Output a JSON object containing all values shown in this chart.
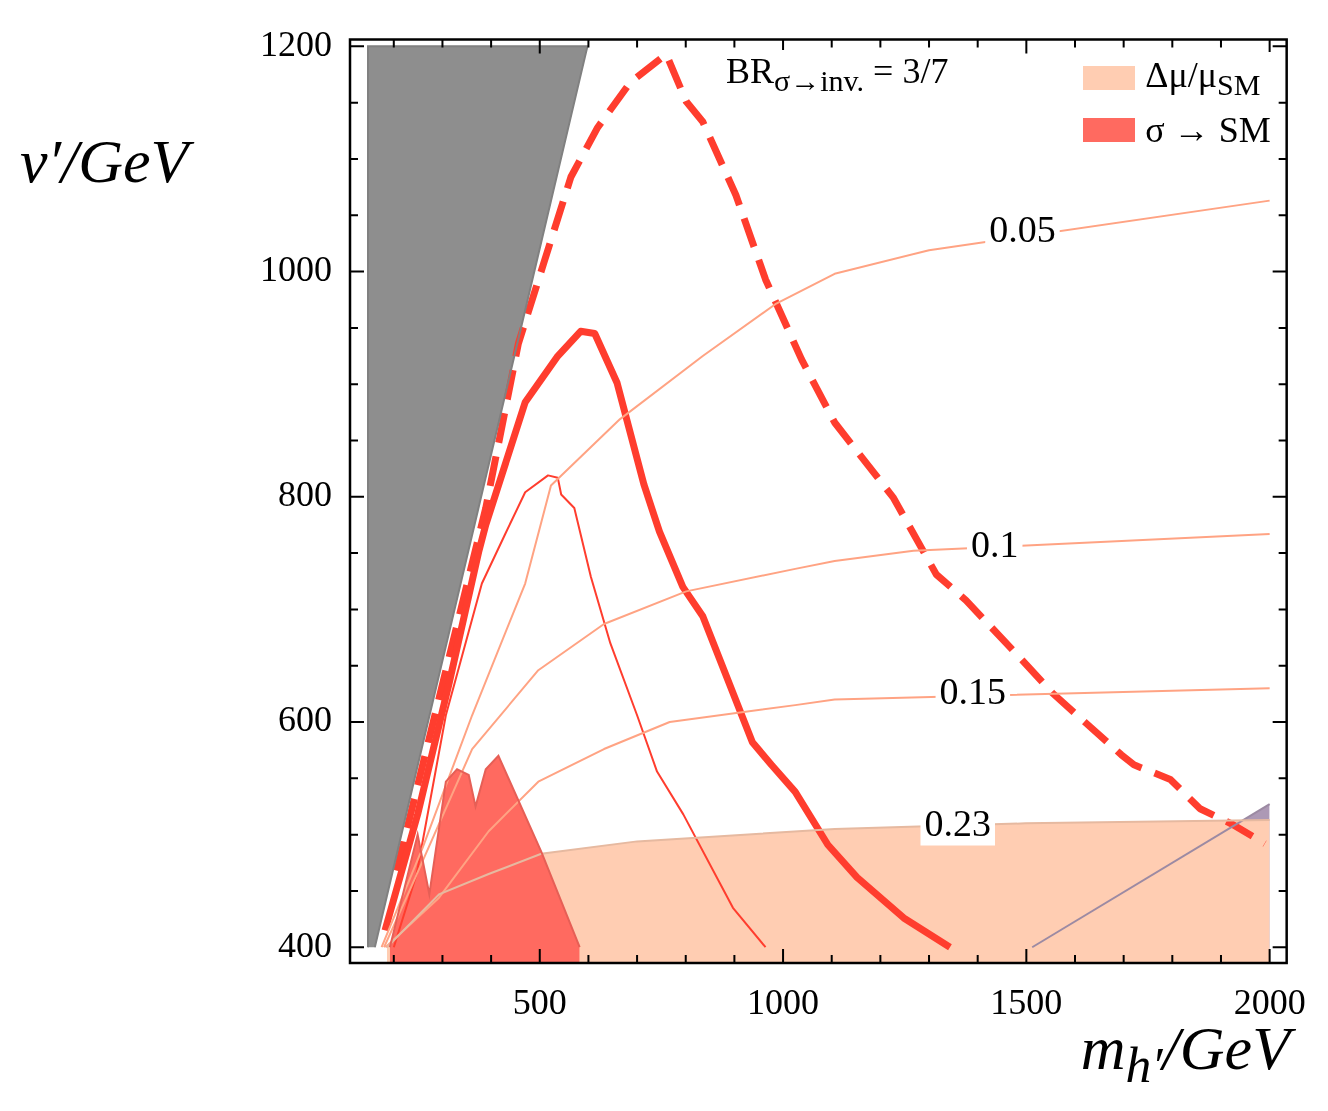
{
  "chart_data": {
    "type": "line",
    "xlabel": "m$_{h′}$/GeV",
    "ylabel": "v′/GeV",
    "annotations": [
      "BR$_{σ→inv.}$ = 3/7",
      {
        "text": "0.05",
        "x": 1492,
        "y": 1035
      },
      {
        "text": "0.1",
        "x": 1435,
        "y": 755
      },
      {
        "text": "0.15",
        "x": 1390,
        "y": 625
      },
      {
        "text": "0.23",
        "x": 1359,
        "y": 508
      }
    ],
    "xlim": [
      110,
      2035
    ],
    "ylim": [
      386,
      1206
    ],
    "xticks": [
      {
        "value": 200,
        "label": null
      },
      {
        "value": 300,
        "label": null
      },
      {
        "value": 400,
        "label": null
      },
      500,
      {
        "value": 600,
        "label": null
      },
      {
        "value": 700,
        "label": null
      },
      {
        "value": 800,
        "label": null
      },
      {
        "value": 900,
        "label": null
      },
      1000,
      {
        "value": 1100,
        "label": null
      },
      {
        "value": 1200,
        "label": null
      },
      {
        "value": 1300,
        "label": null
      },
      {
        "value": 1400,
        "label": null
      },
      1500,
      {
        "value": 1600,
        "label": null
      },
      {
        "value": 1700,
        "label": null
      },
      {
        "value": 1800,
        "label": null
      },
      {
        "value": 1900,
        "label": null
      },
      2000
    ],
    "yticks": [
      400,
      {
        "value": 450,
        "label": null
      },
      {
        "value": 500,
        "label": null
      },
      {
        "value": 550,
        "label": null
      },
      600,
      {
        "value": 650,
        "label": null
      },
      {
        "value": 700,
        "label": null
      },
      {
        "value": 750,
        "label": null
      },
      800,
      {
        "value": 850,
        "label": null
      },
      {
        "value": 900,
        "label": null
      },
      {
        "value": 950,
        "label": null
      },
      1000,
      {
        "value": 1050,
        "label": null
      },
      {
        "value": 1100,
        "label": null
      },
      {
        "value": 1150,
        "label": null
      },
      1200
    ],
    "grid": false,
    "legend": "top right",
    "marker": "none",
    "series": [
      {
        "type": "area",
        "color": "#8e8e8e",
        "x": [
          147,
          147,
          598,
          161
        ],
        "values": [
          400,
          1200,
          1200,
          400
        ]
      },
      {
        "type": "area",
        "name": "σ → SM",
        "color": "#ff6a60",
        "x": [
          192,
          249,
          273,
          307,
          330,
          354,
          368,
          389,
          415,
          503,
          582
        ],
        "values": [
          400,
          500,
          447,
          547,
          558,
          553,
          525,
          558,
          570,
          485,
          400
        ]
      },
      {
        "type": "area",
        "name": "Δμ/μ$_{SM}$",
        "color": "#ffcdb2",
        "x": [
          186,
          293,
          395,
          503,
          700,
          1106,
          1498,
          2000
        ],
        "values": [
          400,
          447,
          465,
          483,
          494,
          505,
          510,
          513
        ]
      },
      {
        "type": "area",
        "color": "#ad99b5",
        "x": [
          1512,
          2000
        ],
        "values": [
          400,
          527
        ]
      },
      {
        "type": "line",
        "color": "#ffa383",
        "x": [
          175,
          259,
          361,
          470,
          523,
          665,
          835,
          984,
          1106,
          1300,
          2000
        ],
        "values": [
          400,
          488,
          606,
          723,
          810,
          869,
          925,
          971,
          998,
          1019,
          1063
        ]
      },
      {
        "type": "line",
        "color": "#ffa383",
        "x": [
          180,
          226,
          361,
          497,
          632,
          801,
          1025,
          1106,
          1268,
          2000
        ],
        "values": [
          400,
          444,
          576,
          646,
          687,
          716,
          736,
          743,
          752,
          767
        ]
      },
      {
        "type": "line",
        "color": "#ffa383",
        "x": [
          183,
          293,
          395,
          497,
          632,
          767,
          1025,
          1106,
          2000
        ],
        "values": [
          400,
          444,
          503,
          547,
          576,
          600,
          615,
          620,
          630
        ]
      },
      {
        "type": "line",
        "color": "#ff3d2e",
        "x": [
          200,
          247,
          307,
          381,
          429,
          470,
          517,
          537,
          544,
          571,
          605,
          645,
          700,
          741,
          795,
          897,
          964
        ],
        "values": [
          400,
          465,
          606,
          723,
          767,
          804,
          819,
          817,
          802,
          790,
          729,
          670,
          606,
          556,
          518,
          435,
          400
        ]
      },
      {
        "type": "line",
        "color": "#ff3d2e",
        "x": [
          182,
          249,
          314,
          375,
          389,
          470,
          537,
          584,
          613,
          659,
          714,
          746,
          794,
          835,
          937,
          976,
          1025,
          1092,
          1152,
          1248,
          1343
        ],
        "values": [
          415,
          518,
          635,
          752,
          775,
          884,
          925,
          947,
          945,
          901,
          811,
          769,
          720,
          694,
          582,
          562,
          538,
          491,
          462,
          426,
          400
        ]
      },
      {
        "type": "line",
        "line_style": "dashed",
        "color": "#ff3d2e",
        "x": [
          206,
          389,
          456,
          510,
          564,
          619,
          686,
          760,
          801,
          835,
          903,
          964,
          1038,
          1106,
          1227,
          1315,
          1376,
          1485,
          1553,
          1620,
          1695,
          1721,
          1796,
          1857,
          1924,
          1990
        ],
        "values": [
          468,
          790,
          936,
          1010,
          1084,
          1128,
          1168,
          1193,
          1151,
          1133,
          1068,
          993,
          922,
          866,
          799,
          731,
          708,
          658,
          626,
          600,
          571,
          562,
          549,
          523,
          509,
          492
        ]
      }
    ]
  }
}
